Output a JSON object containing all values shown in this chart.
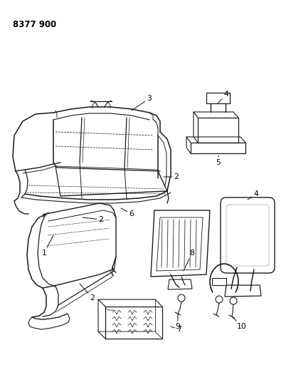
{
  "title": "8377 900",
  "bg": "#ffffff",
  "lc": "#1a1a1a",
  "fig_w": 4.1,
  "fig_h": 5.33,
  "dpi": 100
}
